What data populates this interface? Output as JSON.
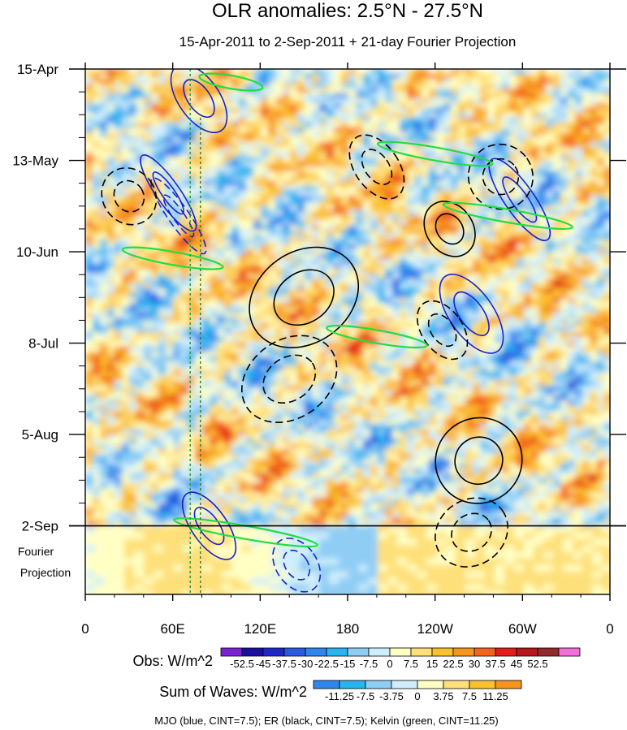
{
  "chart_data": {
    "type": "heatmap",
    "title": "OLR anomalies: 2.5°N - 27.5°N",
    "subtitle": "15-Apr-2011 to 2-Sep-2011 + 21-day Fourier Projection",
    "x_tick_labels": [
      "0",
      "60E",
      "120E",
      "180",
      "120W",
      "60W",
      "0"
    ],
    "x_tick_lon": [
      0,
      60,
      120,
      180,
      240,
      300,
      360
    ],
    "y_tick_labels": [
      "15-Apr",
      "13-May",
      "10-Jun",
      "8-Jul",
      "5-Aug",
      "2-Sep"
    ],
    "y_tick_day": [
      0,
      28,
      56,
      84,
      112,
      140
    ],
    "projection_label_line1": "Fourier",
    "projection_label_line2": "Projection",
    "obs_days": 140,
    "total_days": 161,
    "xlim": [
      0,
      360
    ],
    "obs_colorbar": {
      "label": "Obs: W/m^2",
      "levels": [
        "-52.5",
        "-45",
        "-37.5",
        "-30",
        "-22.5",
        "-15",
        "-7.5",
        "0",
        "7.5",
        "15",
        "22.5",
        "30",
        "37.5",
        "45",
        "52.5"
      ],
      "colors": [
        "#7b22d4",
        "#1a0f9e",
        "#1c28c8",
        "#2b5ae0",
        "#2f86ee",
        "#27b4f0",
        "#8fcdf5",
        "#cfeefc",
        "#ffffc4",
        "#fee07a",
        "#fbc02d",
        "#f7941d",
        "#f4631e",
        "#e31d1d",
        "#b8181c",
        "#922a2a",
        "#f06fd8"
      ]
    },
    "waves_colorbar": {
      "label": "Sum of Waves: W/m^2",
      "levels": [
        "-11.25",
        "-7.5",
        "-3.75",
        "0",
        "3.75",
        "7.5",
        "11.25"
      ],
      "colors": [
        "#2f86ee",
        "#27b4f0",
        "#8fcdf5",
        "#cfeefc",
        "#ffffc4",
        "#fee07a",
        "#fbc02d",
        "#f7941d"
      ]
    },
    "legend_note": "MJO (blue, CINT=7.5); ER (black, CINT=7.5); Kelvin (green, CINT=11.25)",
    "wave_contours": [
      {
        "wave": "MJO",
        "lon": 78,
        "day": 9,
        "lon_radius": 14,
        "day_radius": 12,
        "sign": -1
      },
      {
        "wave": "MJO",
        "lon": 57,
        "day": 38,
        "lon_radius": 8,
        "day_radius": 14,
        "sign": -1
      },
      {
        "wave": "MJO",
        "lon": 64,
        "day": 45,
        "lon_radius": 7,
        "day_radius": 14,
        "sign": 1
      },
      {
        "wave": "MJO",
        "lon": 265,
        "day": 75,
        "lon_radius": 15,
        "day_radius": 14,
        "sign": -1
      },
      {
        "wave": "MJO",
        "lon": 298,
        "day": 40,
        "lon_radius": 10,
        "day_radius": 15,
        "sign": -1
      },
      {
        "wave": "MJO",
        "lon": 85,
        "day": 140,
        "lon_radius": 12,
        "day_radius": 12,
        "sign": -1
      },
      {
        "wave": "MJO",
        "lon": 145,
        "day": 152,
        "lon_radius": 14,
        "day_radius": 9,
        "sign": 1
      },
      {
        "wave": "ER",
        "lon": 30,
        "day": 39,
        "lon_radius": 18,
        "day_radius": 9,
        "sign": 1
      },
      {
        "wave": "ER",
        "lon": 200,
        "day": 30,
        "lon_radius": 15,
        "day_radius": 11,
        "sign": 1
      },
      {
        "wave": "ER",
        "lon": 250,
        "day": 49,
        "lon_radius": 16,
        "day_radius": 9,
        "sign": -1
      },
      {
        "wave": "ER",
        "lon": 285,
        "day": 33,
        "lon_radius": 22,
        "day_radius": 10,
        "sign": 1
      },
      {
        "wave": "ER",
        "lon": 150,
        "day": 70,
        "lon_radius": 40,
        "day_radius": 14,
        "sign": -1
      },
      {
        "wave": "ER",
        "lon": 140,
        "day": 95,
        "lon_radius": 35,
        "day_radius": 12,
        "sign": 1
      },
      {
        "wave": "ER",
        "lon": 270,
        "day": 120,
        "lon_radius": 30,
        "day_radius": 13,
        "sign": -1
      },
      {
        "wave": "ER",
        "lon": 265,
        "day": 142,
        "lon_radius": 26,
        "day_radius": 10,
        "sign": 1
      },
      {
        "wave": "ER",
        "lon": 245,
        "day": 80,
        "lon_radius": 14,
        "day_radius": 10,
        "sign": 1
      },
      {
        "wave": "Kelvin",
        "lon": 100,
        "day": 4,
        "lon_radius": 22,
        "day_radius": 2,
        "sign": -1
      },
      {
        "wave": "Kelvin",
        "lon": 240,
        "day": 26,
        "lon_radius": 40,
        "day_radius": 2,
        "sign": -1
      },
      {
        "wave": "Kelvin",
        "lon": 290,
        "day": 45,
        "lon_radius": 45,
        "day_radius": 2,
        "sign": -1
      },
      {
        "wave": "Kelvin",
        "lon": 60,
        "day": 58,
        "lon_radius": 35,
        "day_radius": 2,
        "sign": -1
      },
      {
        "wave": "Kelvin",
        "lon": 200,
        "day": 82,
        "lon_radius": 35,
        "day_radius": 2,
        "sign": -1
      },
      {
        "wave": "Kelvin",
        "lon": 110,
        "day": 142,
        "lon_radius": 50,
        "day_radius": 2,
        "sign": -1
      }
    ]
  }
}
